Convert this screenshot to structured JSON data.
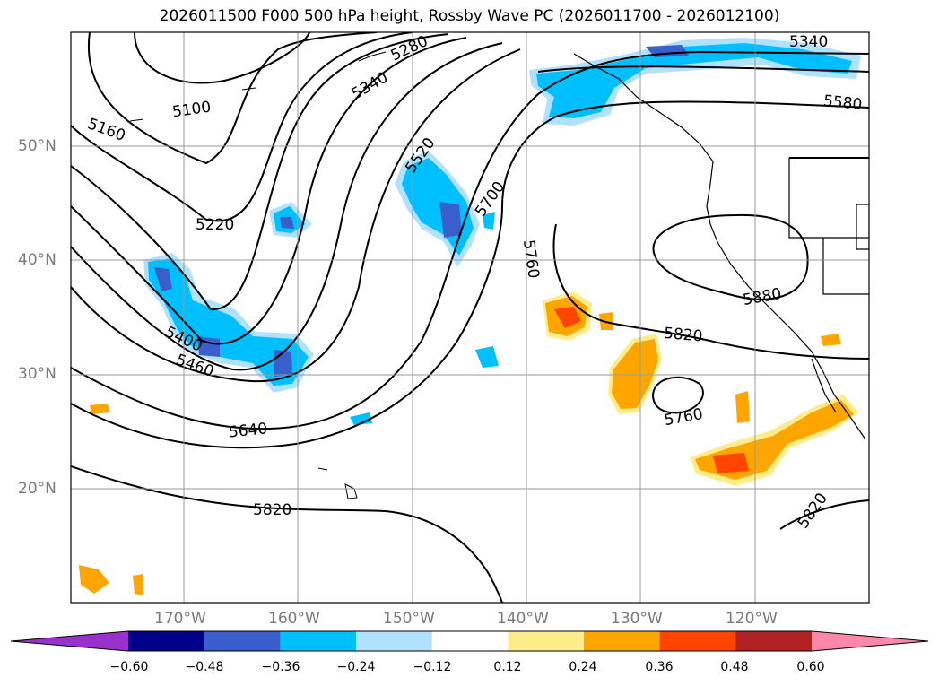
{
  "title": "2026011500 F000 500 hPa height, Rossby Wave PC (2026011700 - 2026012100)",
  "latitude_labels": [
    "50°N",
    "40°N",
    "30°N",
    "20°N"
  ],
  "longitude_labels": [
    "170°W",
    "160°W",
    "150°W",
    "140°W",
    "130°W",
    "120°W"
  ],
  "contour_labels": [
    "5280",
    "5340",
    "5100",
    "5160",
    "5220",
    "5400",
    "5460",
    "5520",
    "5700",
    "5760",
    "5640",
    "5820",
    "5880",
    "5820",
    "5760",
    "5820",
    "5340",
    "5580"
  ],
  "colorbar": {
    "ticks": [
      "−0.60",
      "−0.48",
      "−0.36",
      "−0.24",
      "−0.12",
      "0.12",
      "0.24",
      "0.36",
      "0.48",
      "0.60"
    ],
    "colors": [
      "#9932cc",
      "#00008b",
      "#3a5fcd",
      "#00bfff",
      "#b0e2ff",
      "#ffffff",
      "#ffec8b",
      "#ffa500",
      "#ff4500",
      "#b22222",
      "#ff88aa"
    ]
  }
}
